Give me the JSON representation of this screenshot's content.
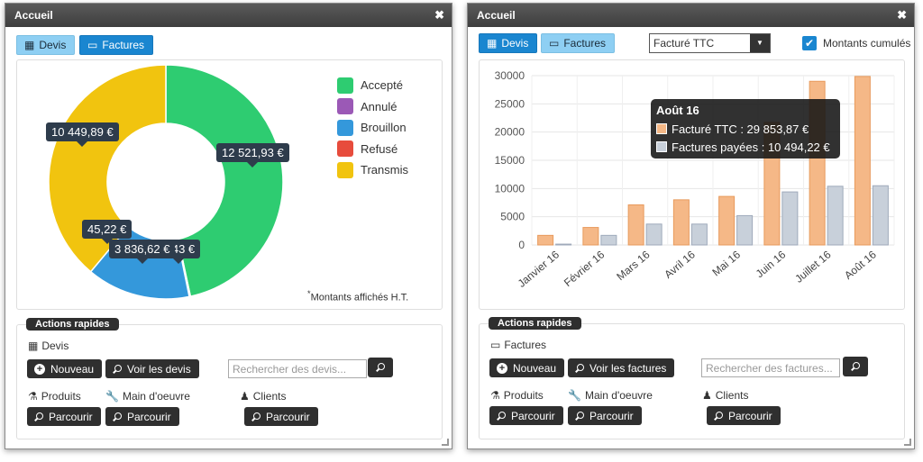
{
  "window_left": {
    "title": "Accueil",
    "tabs": [
      {
        "label": "Devis"
      },
      {
        "label": "Factures"
      }
    ],
    "legend": [
      {
        "label": "Accepté",
        "color": "#2ecc71"
      },
      {
        "label": "Annulé",
        "color": "#9b59b6"
      },
      {
        "label": "Brouillon",
        "color": "#3498db"
      },
      {
        "label": "Refusé",
        "color": "#e74c3c"
      },
      {
        "label": "Transmis",
        "color": "#f1c40f"
      }
    ],
    "tooltips": {
      "transmis": "10 449,89 €",
      "accepte": "12 521,93 €",
      "annule": "45,22 €",
      "brouillon": "3 836,62 €",
      "partial": "4,43 €"
    },
    "note_star": "*",
    "note": "Montants affichés H.T.",
    "actions": {
      "title": "Actions rapides",
      "section_label": "Devis",
      "new_label": "Nouveau",
      "view_label": "Voir les devis",
      "search_placeholder": "Rechercher des devis...",
      "products_label": "Produits",
      "labour_label": "Main d'oeuvre",
      "clients_label": "Clients",
      "browse_label": "Parcourir"
    }
  },
  "window_right": {
    "title": "Accueil",
    "tabs": [
      {
        "label": "Devis"
      },
      {
        "label": "Factures"
      }
    ],
    "select_value": "Facturé TTC",
    "checkbox_label": "Montants cumulés",
    "tooltip": {
      "title": "Août 16",
      "line1": "Facturé TTC : 29 853,87 €",
      "line2": "Factures payées : 10 494,22 €"
    },
    "actions": {
      "title": "Actions rapides",
      "section_label": "Factures",
      "new_label": "Nouveau",
      "view_label": "Voir les factures",
      "search_placeholder": "Rechercher des factures...",
      "products_label": "Produits",
      "labour_label": "Main d'oeuvre",
      "clients_label": "Clients",
      "browse_label": "Parcourir"
    }
  },
  "chart_data": [
    {
      "type": "pie",
      "labels": [
        "Accepté",
        "Annulé",
        "Brouillon",
        "Refusé",
        "Transmis"
      ],
      "values": [
        12521.93,
        45.22,
        3836.62,
        0,
        10449.89
      ],
      "colors": [
        "#2ecc71",
        "#9b59b6",
        "#3498db",
        "#e74c3c",
        "#f1c40f"
      ],
      "legend": "right"
    },
    {
      "type": "bar",
      "categories": [
        "Janvier 16",
        "Février 16",
        "Mars 16",
        "Avril 16",
        "Mai 16",
        "Juin 16",
        "Juillet 16",
        "Août 16"
      ],
      "series": [
        {
          "name": "Facturé TTC",
          "color": "#f5b887",
          "values": [
            1700,
            3100,
            7100,
            8000,
            8600,
            21700,
            29000,
            29853.87
          ]
        },
        {
          "name": "Factures payées",
          "color": "#c8d0da",
          "values": [
            150,
            1700,
            3700,
            3700,
            5200,
            9400,
            10400,
            10494.22
          ]
        }
      ],
      "ylim": [
        0,
        30000
      ],
      "yticks": [
        0,
        5000,
        10000,
        15000,
        20000,
        25000,
        30000
      ],
      "grid": true
    }
  ]
}
